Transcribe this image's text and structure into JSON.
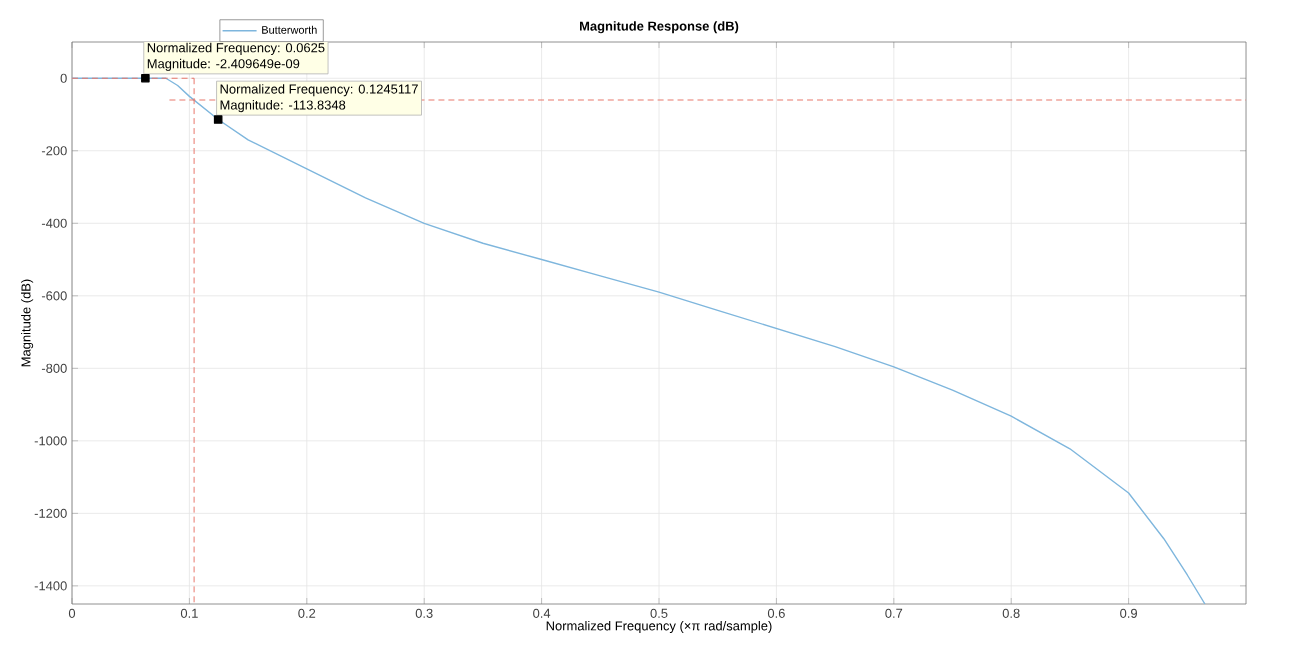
{
  "chart_data": {
    "type": "line",
    "title": "Magnitude Response (dB)",
    "xlabel": "Normalized Frequency (×π rad/sample)",
    "ylabel": "Magnitude (dB)",
    "xlim": [
      0,
      1
    ],
    "ylim": [
      -1450,
      100
    ],
    "xticks": [
      0,
      0.1,
      0.2,
      0.3,
      0.4,
      0.5,
      0.6,
      0.7,
      0.8,
      0.9
    ],
    "yticks": [
      -1400,
      -1200,
      -1000,
      -800,
      -600,
      -400,
      -200,
      0
    ],
    "grid": true,
    "legend": "top",
    "marker": "none",
    "series": [
      {
        "name": "Butterworth",
        "color": "#7eb6dd",
        "line_style": "solid",
        "x": [
          0,
          0.03,
          0.0625,
          0.08,
          0.09,
          0.1,
          0.1245117,
          0.15,
          0.175,
          0.2,
          0.25,
          0.3,
          0.35,
          0.4,
          0.45,
          0.5,
          0.55,
          0.6,
          0.65,
          0.7,
          0.75,
          0.8,
          0.85,
          0.9,
          0.93,
          0.95,
          0.965
        ],
        "values": [
          0,
          0,
          0,
          0,
          -20,
          -50,
          -113.8348,
          -170,
          -210,
          -250,
          -330,
          -400,
          -455,
          -500,
          -545,
          -590,
          -640,
          -690,
          -740,
          -796,
          -860,
          -932,
          -1022,
          -1144,
          -1270,
          -1370,
          -1450
        ]
      },
      {
        "color": "#e8766a",
        "line_style": "dashed",
        "x": [
          0,
          0.104
        ],
        "values": [
          0,
          0
        ]
      },
      {
        "color": "#e8766a",
        "line_style": "dashed",
        "x": [
          0.104,
          0.104
        ],
        "values": [
          0,
          -1450
        ]
      },
      {
        "color": "#e8766a",
        "line_style": "dashed",
        "x": [
          0.083,
          1
        ],
        "values": [
          -60,
          -60
        ]
      },
      {
        "type": "scatter",
        "color": "#000000",
        "marker": "square",
        "x": [
          0.0625,
          0.1245117
        ],
        "values": [
          -2.409649e-09,
          -113.8348
        ]
      }
    ],
    "annotations": [
      "Normalized Frequency: 0.0625",
      "Magnitude: -2.409649e-09",
      "Normalized Frequency: 0.1245117",
      "Magnitude: -113.8348"
    ]
  }
}
